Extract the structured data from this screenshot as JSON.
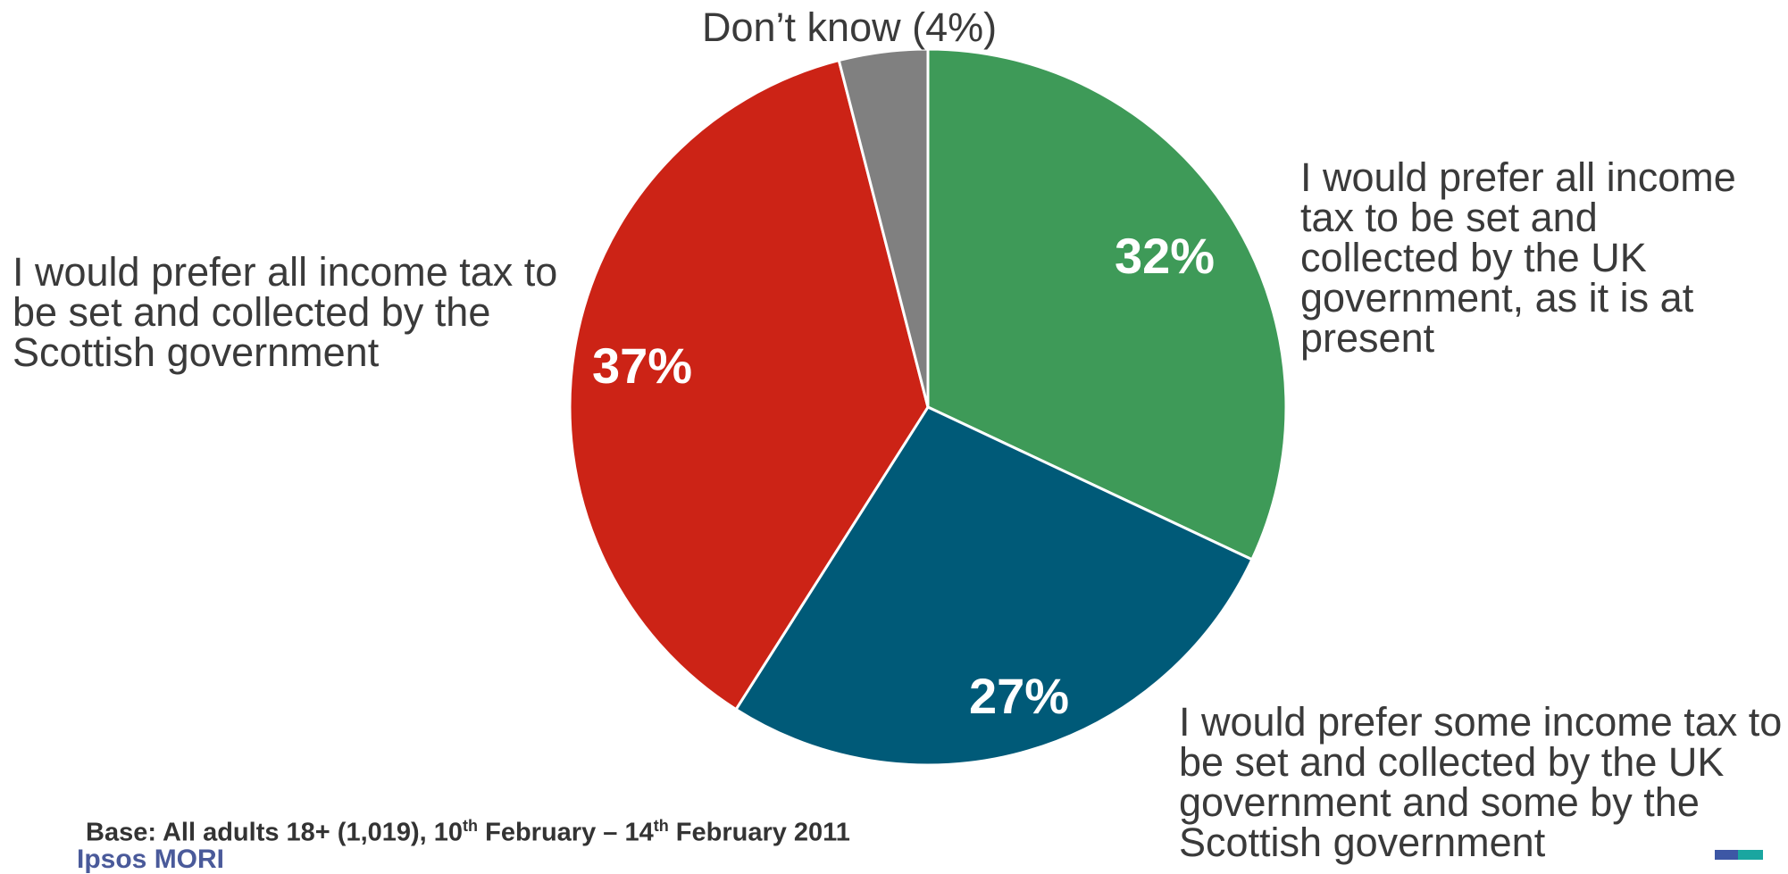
{
  "chart_data": {
    "type": "pie",
    "slices": [
      {
        "label": "I would prefer all income tax to be set and collected by the UK government, as it is at present",
        "value": 32,
        "value_label": "32%",
        "color": "#3e9a58"
      },
      {
        "label": "I would prefer some income tax to be set and collected by the UK government and some by the Scottish government",
        "value": 27,
        "value_label": "27%",
        "color": "#005a78"
      },
      {
        "label": "I would prefer all income tax to be set and collected by the Scottish government",
        "value": 37,
        "value_label": "37%",
        "color": "#cc2316"
      },
      {
        "label": "Don’t know (4%)",
        "value": 4,
        "value_label": "",
        "color": "#808080"
      }
    ]
  },
  "footer": {
    "base_prefix": "Base: All adults 18+ (1,019), 10",
    "sup1": "th",
    "base_mid": " February – 14",
    "sup2": "th",
    "base_suffix": " February 2011",
    "logo_text": "Ipsos MORI"
  },
  "colors": {
    "logo_mark_left": "#3d57a5",
    "logo_mark_right": "#1aa6a0"
  }
}
